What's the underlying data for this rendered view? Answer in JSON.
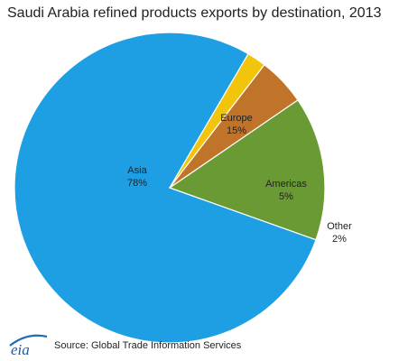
{
  "chart_data": {
    "type": "pie",
    "title": "Saudi Arabia refined products exports by destination, 2013",
    "slices": [
      {
        "name": "Asia",
        "value": 78,
        "label": "78%",
        "color": "#1f9fe3"
      },
      {
        "name": "Europe",
        "value": 15,
        "label": "15%",
        "color": "#6a9a34"
      },
      {
        "name": "Americas",
        "value": 5,
        "label": "5%",
        "color": "#c0742a"
      },
      {
        "name": "Other",
        "value": 2,
        "label": "2%",
        "color": "#f2c40c"
      }
    ]
  },
  "footer": {
    "logo_text": "eia",
    "source": "Source: Global Trade Information Services"
  }
}
